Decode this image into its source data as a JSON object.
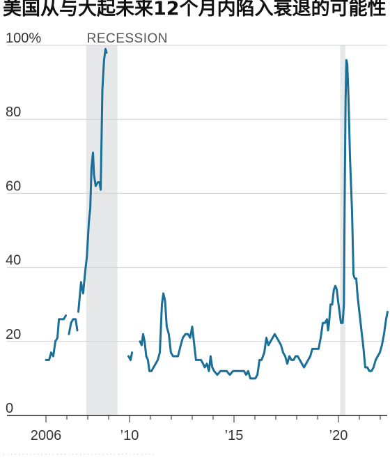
{
  "title": "美国从与大起未来12个月内陷入衰退的可能性",
  "chart_data": {
    "type": "line",
    "ylim": [
      0,
      100
    ],
    "yticks": [
      {
        "value": 100,
        "label": "100%"
      },
      {
        "value": 80,
        "label": "80"
      },
      {
        "value": 60,
        "label": "60"
      },
      {
        "value": 40,
        "label": "40"
      },
      {
        "value": 20,
        "label": "20"
      },
      {
        "value": 0,
        "label": "0"
      }
    ],
    "xlim": [
      2005.5,
      2022.6
    ],
    "xticks": [
      {
        "value": 2006,
        "label": "2006"
      },
      {
        "value": 2010,
        "label": "’10"
      },
      {
        "value": 2015,
        "label": "’15"
      },
      {
        "value": 2020,
        "label": "’20"
      }
    ],
    "recessions": [
      {
        "start": 2007.92,
        "end": 2009.42,
        "label": "RECESSION"
      },
      {
        "start": 2020.08,
        "end": 2020.33,
        "label": ""
      }
    ],
    "line_color": "#1a6f99",
    "segments": [
      [
        [
          2006.0,
          15
        ],
        [
          2006.15,
          15
        ],
        [
          2006.25,
          17
        ],
        [
          2006.35,
          16
        ],
        [
          2006.45,
          20
        ],
        [
          2006.55,
          21
        ],
        [
          2006.62,
          26
        ],
        [
          2006.75,
          26
        ],
        [
          2006.85,
          26
        ],
        [
          2006.95,
          27
        ]
      ],
      [
        [
          2007.1,
          22
        ],
        [
          2007.2,
          25
        ],
        [
          2007.3,
          26
        ],
        [
          2007.42,
          26
        ],
        [
          2007.5,
          23
        ]
      ],
      [
        [
          2007.55,
          28
        ],
        [
          2007.68,
          36
        ],
        [
          2007.78,
          33
        ],
        [
          2007.88,
          39
        ],
        [
          2007.96,
          43
        ],
        [
          2008.05,
          52
        ],
        [
          2008.12,
          56
        ],
        [
          2008.18,
          67
        ],
        [
          2008.25,
          71
        ],
        [
          2008.3,
          65
        ],
        [
          2008.38,
          62
        ],
        [
          2008.48,
          63
        ],
        [
          2008.56,
          63
        ],
        [
          2008.62,
          61
        ],
        [
          2008.7,
          88
        ],
        [
          2008.78,
          96
        ],
        [
          2008.85,
          99
        ],
        [
          2008.9,
          98
        ]
      ],
      [
        [
          2009.95,
          16
        ],
        [
          2010.05,
          15
        ],
        [
          2010.12,
          17
        ]
      ],
      [
        [
          2010.5,
          20
        ],
        [
          2010.58,
          19
        ],
        [
          2010.65,
          22
        ],
        [
          2010.72,
          20
        ],
        [
          2010.8,
          16
        ],
        [
          2010.88,
          15
        ],
        [
          2010.95,
          12
        ],
        [
          2011.05,
          12
        ],
        [
          2011.15,
          13
        ],
        [
          2011.25,
          14
        ],
        [
          2011.35,
          15
        ],
        [
          2011.45,
          17
        ],
        [
          2011.55,
          30
        ],
        [
          2011.62,
          33
        ],
        [
          2011.7,
          31
        ],
        [
          2011.78,
          24
        ],
        [
          2011.88,
          22
        ],
        [
          2011.98,
          17
        ],
        [
          2012.08,
          16
        ],
        [
          2012.2,
          16
        ],
        [
          2012.32,
          16
        ],
        [
          2012.45,
          19
        ],
        [
          2012.55,
          21
        ],
        [
          2012.68,
          22
        ],
        [
          2012.8,
          22
        ],
        [
          2012.9,
          21
        ],
        [
          2013.0,
          24
        ],
        [
          2013.08,
          20
        ],
        [
          2013.18,
          15
        ],
        [
          2013.3,
          15
        ],
        [
          2013.42,
          15
        ],
        [
          2013.52,
          14
        ],
        [
          2013.6,
          13
        ],
        [
          2013.7,
          14
        ],
        [
          2013.8,
          12
        ],
        [
          2013.88,
          16
        ],
        [
          2013.96,
          13
        ],
        [
          2014.05,
          12
        ],
        [
          2014.2,
          11
        ],
        [
          2014.35,
          12
        ],
        [
          2014.5,
          12
        ],
        [
          2014.65,
          12
        ],
        [
          2014.8,
          11
        ],
        [
          2014.95,
          12
        ],
        [
          2015.1,
          12
        ],
        [
          2015.25,
          12
        ],
        [
          2015.38,
          12
        ],
        [
          2015.48,
          12
        ],
        [
          2015.58,
          11
        ],
        [
          2015.68,
          12
        ],
        [
          2015.78,
          10
        ],
        [
          2015.9,
          10
        ],
        [
          2016.02,
          10
        ],
        [
          2016.12,
          11
        ],
        [
          2016.22,
          15
        ],
        [
          2016.32,
          15
        ],
        [
          2016.45,
          17
        ],
        [
          2016.55,
          21
        ],
        [
          2016.65,
          19
        ],
        [
          2016.75,
          20
        ],
        [
          2016.85,
          21
        ],
        [
          2016.95,
          22
        ],
        [
          2017.05,
          21
        ],
        [
          2017.15,
          20
        ],
        [
          2017.25,
          19
        ],
        [
          2017.35,
          17
        ],
        [
          2017.45,
          16
        ],
        [
          2017.55,
          14
        ],
        [
          2017.65,
          16
        ],
        [
          2017.75,
          15
        ],
        [
          2017.85,
          15
        ],
        [
          2017.95,
          16
        ],
        [
          2018.05,
          16
        ],
        [
          2018.15,
          15
        ],
        [
          2018.25,
          14
        ],
        [
          2018.35,
          13
        ],
        [
          2018.45,
          14
        ],
        [
          2018.55,
          15
        ],
        [
          2018.65,
          16
        ],
        [
          2018.75,
          18
        ],
        [
          2018.85,
          18
        ],
        [
          2018.95,
          18
        ],
        [
          2019.05,
          18
        ],
        [
          2019.15,
          21
        ],
        [
          2019.25,
          25
        ],
        [
          2019.35,
          25
        ],
        [
          2019.45,
          26
        ],
        [
          2019.5,
          23
        ],
        [
          2019.55,
          25
        ],
        [
          2019.62,
          30
        ],
        [
          2019.7,
          30
        ],
        [
          2019.78,
          34
        ],
        [
          2019.85,
          35
        ],
        [
          2019.92,
          34
        ],
        [
          2019.98,
          31
        ],
        [
          2020.05,
          28
        ],
        [
          2020.12,
          25
        ],
        [
          2020.2,
          25
        ],
        [
          2020.26,
          30
        ],
        [
          2020.3,
          60
        ],
        [
          2020.34,
          85
        ],
        [
          2020.38,
          96
        ],
        [
          2020.42,
          95
        ],
        [
          2020.48,
          86
        ],
        [
          2020.55,
          70
        ],
        [
          2020.65,
          55
        ],
        [
          2020.72,
          38
        ],
        [
          2020.78,
          37
        ],
        [
          2020.85,
          37
        ],
        [
          2020.92,
          32
        ],
        [
          2021.0,
          28
        ],
        [
          2021.1,
          23
        ],
        [
          2021.2,
          18
        ],
        [
          2021.28,
          13
        ],
        [
          2021.38,
          13
        ],
        [
          2021.48,
          12
        ],
        [
          2021.58,
          12
        ],
        [
          2021.68,
          13
        ],
        [
          2021.78,
          15
        ],
        [
          2021.88,
          16
        ],
        [
          2021.98,
          17
        ],
        [
          2022.08,
          19
        ],
        [
          2022.18,
          22
        ],
        [
          2022.28,
          26
        ],
        [
          2022.35,
          28
        ]
      ]
    ]
  }
}
